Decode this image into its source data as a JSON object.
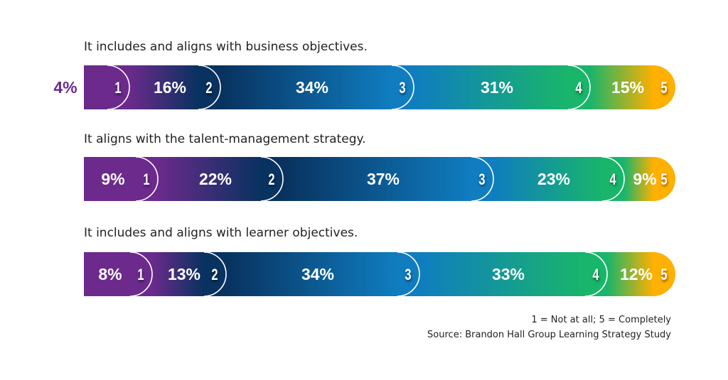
{
  "chart_data": {
    "type": "bar",
    "orientation": "horizontal",
    "stacked": true,
    "categories": [
      "It includes and aligns with business objectives.",
      "It aligns with the talent-management strategy.",
      "It includes and aligns with learner objectives."
    ],
    "segment_labels": [
      "1",
      "2",
      "3",
      "4",
      "5"
    ],
    "series": [
      {
        "name": "1",
        "values": [
          4,
          9,
          8
        ]
      },
      {
        "name": "2",
        "values": [
          16,
          22,
          13
        ]
      },
      {
        "name": "3",
        "values": [
          34,
          37,
          34
        ]
      },
      {
        "name": "4",
        "values": [
          31,
          23,
          33
        ]
      },
      {
        "name": "5",
        "values": [
          15,
          9,
          12
        ]
      }
    ],
    "value_format": "%",
    "colors": [
      "#6b2a8c",
      "#08325f",
      "#0f7dc0",
      "#19b56b",
      "#ffb000"
    ],
    "xlim": [
      0,
      100
    ],
    "grid": false,
    "legend": "none"
  },
  "footnotes": {
    "scale": "1 = Not at all; 5 = Completely",
    "source": "Source: Brandon Hall Group Learning Strategy Study"
  }
}
